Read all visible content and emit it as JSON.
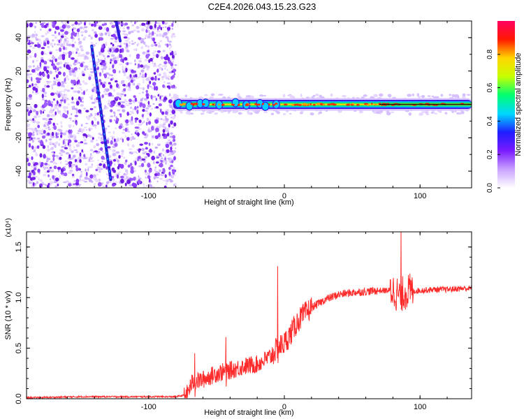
{
  "title": "C2E4.2026.043.15.23.G23",
  "chart_data": [
    {
      "type": "heatmap",
      "xlabel": "Height of straight line (km)",
      "ylabel": "Frequency (Hz)",
      "xlim": [
        -190,
        138
      ],
      "ylim": [
        -50,
        50
      ],
      "xticks": [
        -100,
        0,
        100
      ],
      "xtick_labels": [
        "-100",
        "0",
        "100"
      ],
      "yticks": [
        -40,
        -20,
        0,
        20,
        40
      ],
      "ytick_labels": [
        "-40",
        "-20",
        "0",
        "20",
        "40"
      ],
      "noise_region_x": [
        -190,
        -80
      ],
      "tone_band": {
        "x_start": -82,
        "x_end": 138,
        "center_hz": 0,
        "halfwidth_hz": 2.5
      },
      "dispersed_trace": {
        "x": [
          -142,
          -128
        ],
        "y": [
          35,
          -45
        ]
      },
      "dispersed_trace_2": {
        "x": [
          -124,
          -121
        ],
        "y": [
          50,
          38
        ]
      },
      "colorbar": {
        "label": "Normalized spectral amplitude",
        "range": [
          0,
          1
        ],
        "ticks": [
          0.0,
          0.2,
          0.4,
          0.6,
          0.8
        ],
        "tick_labels": [
          "0.0",
          "0.2",
          "0.4",
          "0.6",
          "0.8"
        ],
        "colors": [
          "#ffffff",
          "#c9a2ff",
          "#7a1bff",
          "#1e1eff",
          "#00d8ff",
          "#00ff70",
          "#c8ff00",
          "#ffd500",
          "#ff1a00",
          "#ff0060"
        ]
      }
    },
    {
      "type": "line",
      "xlabel": "Height of straight line (km)",
      "ylabel": "SNR (10 * v/v)",
      "multiplier": "(x10⁴)",
      "xlim": [
        -190,
        138
      ],
      "ylim": [
        0,
        1.65
      ],
      "xticks": [
        -100,
        0,
        100
      ],
      "xtick_labels": [
        "-100",
        "0",
        "100"
      ],
      "yticks": [
        0.0,
        0.5,
        1.0,
        1.5
      ],
      "ytick_labels": [
        "0.0",
        "0.5",
        "1.0",
        "1.5"
      ],
      "series": [
        {
          "name": "SNR",
          "color": "#ff2a2a",
          "x": [
            -190,
            -150,
            -120,
            -100,
            -80,
            -72,
            -68,
            -60,
            -50,
            -40,
            -30,
            -20,
            -10,
            -5,
            0,
            5,
            10,
            20,
            30,
            40,
            50,
            60,
            70,
            80,
            85,
            90,
            100,
            110,
            120,
            130,
            138
          ],
          "y": [
            0.01,
            0.02,
            0.02,
            0.02,
            0.02,
            0.04,
            0.16,
            0.19,
            0.25,
            0.28,
            0.32,
            0.34,
            0.42,
            0.5,
            0.55,
            0.65,
            0.77,
            0.9,
            0.98,
            1.03,
            1.05,
            1.06,
            1.07,
            1.07,
            1.02,
            1.06,
            1.07,
            1.08,
            1.08,
            1.09,
            1.09
          ]
        }
      ],
      "annotations": [
        {
          "x": -66,
          "y": 0.45,
          "label": ""
        },
        {
          "x": -43,
          "y": 0.61,
          "label": ""
        },
        {
          "x": -5,
          "y": 1.31,
          "label": ""
        },
        {
          "x": 86,
          "y": 1.65,
          "label": ""
        }
      ]
    }
  ]
}
